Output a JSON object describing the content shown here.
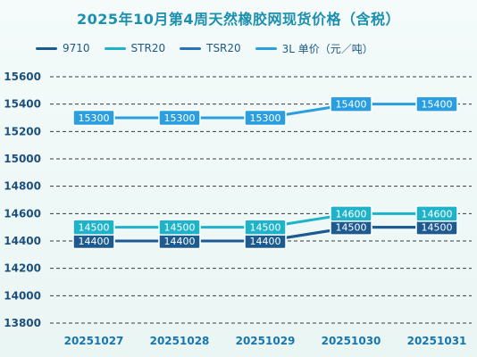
{
  "chart_data": {
    "type": "line",
    "title": "2025年10月第4周天然橡胶网现货价格（含税）",
    "categories": [
      "20251027",
      "20251028",
      "20251029",
      "20251030",
      "20251031"
    ],
    "series": [
      {
        "name": "9710",
        "values": [
          14400,
          14400,
          14400,
          14500,
          14500
        ],
        "color": "#1d5a8f"
      },
      {
        "name": "STR20",
        "values": [
          14500,
          14500,
          14500,
          14600,
          14600
        ],
        "color": "#1fb3c9"
      },
      {
        "name": "TSR20",
        "values": [
          14400,
          14400,
          14400,
          14500,
          14500
        ],
        "color": "#2474b8"
      },
      {
        "name": "3L 单价（元／吨）",
        "values": [
          15300,
          15300,
          15300,
          15400,
          15400
        ],
        "color": "#2a9fe0"
      }
    ],
    "yticks": [
      15600,
      15400,
      15200,
      15000,
      14800,
      14600,
      14400,
      14200,
      14000,
      13800
    ],
    "ylim": [
      13800,
      15600
    ],
    "grid": true,
    "legend_position": "top"
  }
}
